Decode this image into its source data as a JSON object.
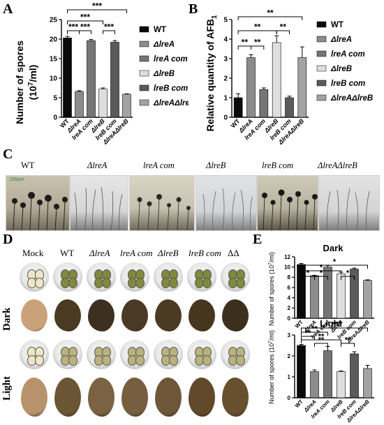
{
  "panel_letters": [
    "A",
    "B",
    "C",
    "D",
    "E"
  ],
  "legend_labels": [
    "WT",
    "ΔlreA",
    "lreA com",
    "ΔlreB",
    "lreB com",
    "ΔlreAΔlreB"
  ],
  "sig_labels": {
    "three": "***",
    "two": "**",
    "one": "*"
  },
  "panelC": {
    "captions": [
      "WT",
      "ΔlreA",
      "lreA com",
      "ΔlreB",
      "lreB com",
      "ΔlreAΔlreB"
    ],
    "scale_text": "100μm"
  },
  "panelD": {
    "headers": [
      "Mock",
      "WT",
      "ΔlreA",
      "lreA com",
      "ΔlreB",
      "lreB com",
      "ΔΔ"
    ],
    "row_labels": [
      "Dark",
      "Light"
    ]
  },
  "colors": {
    "WT": "#0a0a0a",
    "ΔlreA": "#8c8c8c",
    "lreA com": "#757575",
    "ΔlreB": "#dedede",
    "lreB com": "#5a5a5a",
    "ΔlreAΔlreB": "#a3a3a3"
  },
  "chart_data": [
    {
      "type": "bar",
      "id": "A",
      "categories": [
        "WT",
        "ΔlreA",
        "lreA com",
        "ΔlreB",
        "lreB com",
        "ΔlreAΔlreB"
      ],
      "values": [
        20.3,
        6.6,
        19.6,
        7.2,
        19.2,
        5.9
      ],
      "errors": [
        0.4,
        0.2,
        0.3,
        0.3,
        0.4,
        0.1
      ],
      "ylabel": "Number of spores",
      "ylabel_unit": "(10",
      "ylabel_exp": "7",
      "ylabel_tail": "/ml)",
      "ylim": [
        0,
        25
      ],
      "yticks": [
        0,
        5,
        10,
        15,
        20,
        25
      ],
      "significance": [
        {
          "from": 0,
          "to": 1,
          "label": "***"
        },
        {
          "from": 0,
          "to": 3,
          "label": "***"
        },
        {
          "from": 0,
          "to": 5,
          "label": "***"
        },
        {
          "from": 1,
          "to": 2,
          "label": "***"
        },
        {
          "from": 3,
          "to": 4,
          "label": "***"
        }
      ]
    },
    {
      "type": "bar",
      "id": "B",
      "categories": [
        "WT",
        "ΔlreA",
        "lreA com",
        "ΔlreB",
        "lreB com",
        "ΔlreAΔlreB"
      ],
      "values": [
        1.0,
        3.05,
        1.42,
        3.82,
        1.0,
        3.05
      ],
      "errors": [
        0.2,
        0.15,
        0.08,
        0.35,
        0.08,
        0.55
      ],
      "ylabel": "Relative quantity of AFB",
      "ylabel_sub": "1",
      "ylim": [
        0,
        5
      ],
      "yticks": [
        0,
        1,
        2,
        3,
        4,
        5
      ],
      "significance": [
        {
          "from": 0,
          "to": 1,
          "label": "**"
        },
        {
          "from": 0,
          "to": 3,
          "label": "**"
        },
        {
          "from": 0,
          "to": 5,
          "label": "**"
        },
        {
          "from": 1,
          "to": 2,
          "label": "**"
        },
        {
          "from": 3,
          "to": 4,
          "label": "**"
        }
      ]
    },
    {
      "type": "bar",
      "id": "E-dark",
      "title": "Dark",
      "categories": [
        "WT",
        "ΔlreA",
        "lreA com",
        "ΔlreB",
        "lreB com",
        "ΔlreAΔlreB"
      ],
      "values": [
        10.5,
        8.3,
        10.0,
        8.7,
        9.6,
        7.4
      ],
      "errors": [
        0.2,
        0.1,
        0.3,
        0.3,
        0.2,
        0.1
      ],
      "ylabel": "Number of spores",
      "ylabel_unit": "(10",
      "ylabel_exp": "7",
      "ylabel_tail": "/ml)",
      "ylim": [
        0,
        12
      ],
      "yticks": [
        0,
        2,
        4,
        6,
        8,
        10,
        12
      ],
      "significance": [
        {
          "from": 0,
          "to": 1,
          "label": "*"
        },
        {
          "from": 0,
          "to": 3,
          "label": "*"
        },
        {
          "from": 0,
          "to": 5,
          "label": "*"
        },
        {
          "from": 1,
          "to": 2,
          "label": "*"
        },
        {
          "from": 3,
          "to": 4,
          "label": "*"
        }
      ]
    },
    {
      "type": "bar",
      "id": "E-light",
      "title": "Light",
      "categories": [
        "WT",
        "ΔlreA",
        "lreA com",
        "ΔlreB",
        "lreB com",
        "ΔlreAΔlreB"
      ],
      "values": [
        2.5,
        1.25,
        2.25,
        1.25,
        2.1,
        1.4
      ],
      "errors": [
        0.05,
        0.08,
        0.2,
        0.03,
        0.1,
        0.15
      ],
      "ylabel": "Number of spores",
      "ylabel_unit": "(10",
      "ylabel_exp": "7",
      "ylabel_tail": "/ml)",
      "ylim": [
        0,
        3
      ],
      "yticks": [
        0,
        1,
        2,
        3
      ],
      "significance": [
        {
          "from": 0,
          "to": 1,
          "label": "**"
        },
        {
          "from": 0,
          "to": 2,
          "label": "**"
        },
        {
          "from": 0,
          "to": 3,
          "label": "**"
        },
        {
          "from": 1,
          "to": 2,
          "label": "**"
        },
        {
          "from": 3,
          "to": 4,
          "label": "**"
        },
        {
          "from": 0,
          "to": 5,
          "label": "**"
        }
      ]
    }
  ]
}
